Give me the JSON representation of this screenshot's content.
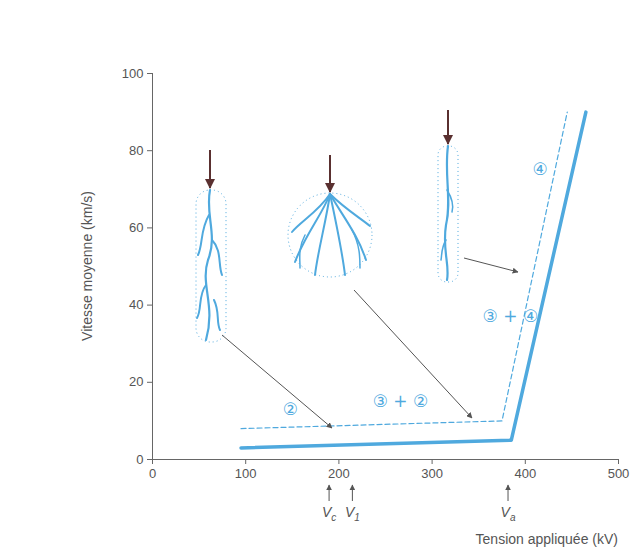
{
  "chart_data": {
    "type": "line",
    "xlabel": "Tension appliquée (kV)",
    "ylabel": "Vitesse moyenne (km/s)",
    "xlim": [
      0,
      500
    ],
    "ylim": [
      0,
      100
    ],
    "xticks": [
      0,
      100,
      200,
      300,
      400,
      500
    ],
    "yticks": [
      0,
      20,
      40,
      60,
      80,
      100
    ],
    "grid": false,
    "series": [
      {
        "color": "#4fa9de",
        "line_style": "solid",
        "x": [
          95,
          385,
          465
        ],
        "values": [
          3,
          5,
          90
        ]
      },
      {
        "color": "#4fa9de",
        "line_style": "dashed",
        "x": [
          95,
          375,
          445
        ],
        "values": [
          8,
          10,
          90
        ]
      }
    ],
    "annotations": [
      {
        "text": "②",
        "x": 148,
        "y": 13
      },
      {
        "text": "③ + ②",
        "x": 266,
        "y": 15
      },
      {
        "text": "③ + ④",
        "x": 384,
        "y": 37
      },
      {
        "text": "④",
        "x": 416,
        "y": 75
      }
    ],
    "markers": [
      {
        "label": "V",
        "subscript": "c",
        "value": 190
      },
      {
        "label": "V",
        "subscript": "1",
        "value": 215
      },
      {
        "label": "V",
        "subscript": "a",
        "value": 382
      }
    ]
  }
}
